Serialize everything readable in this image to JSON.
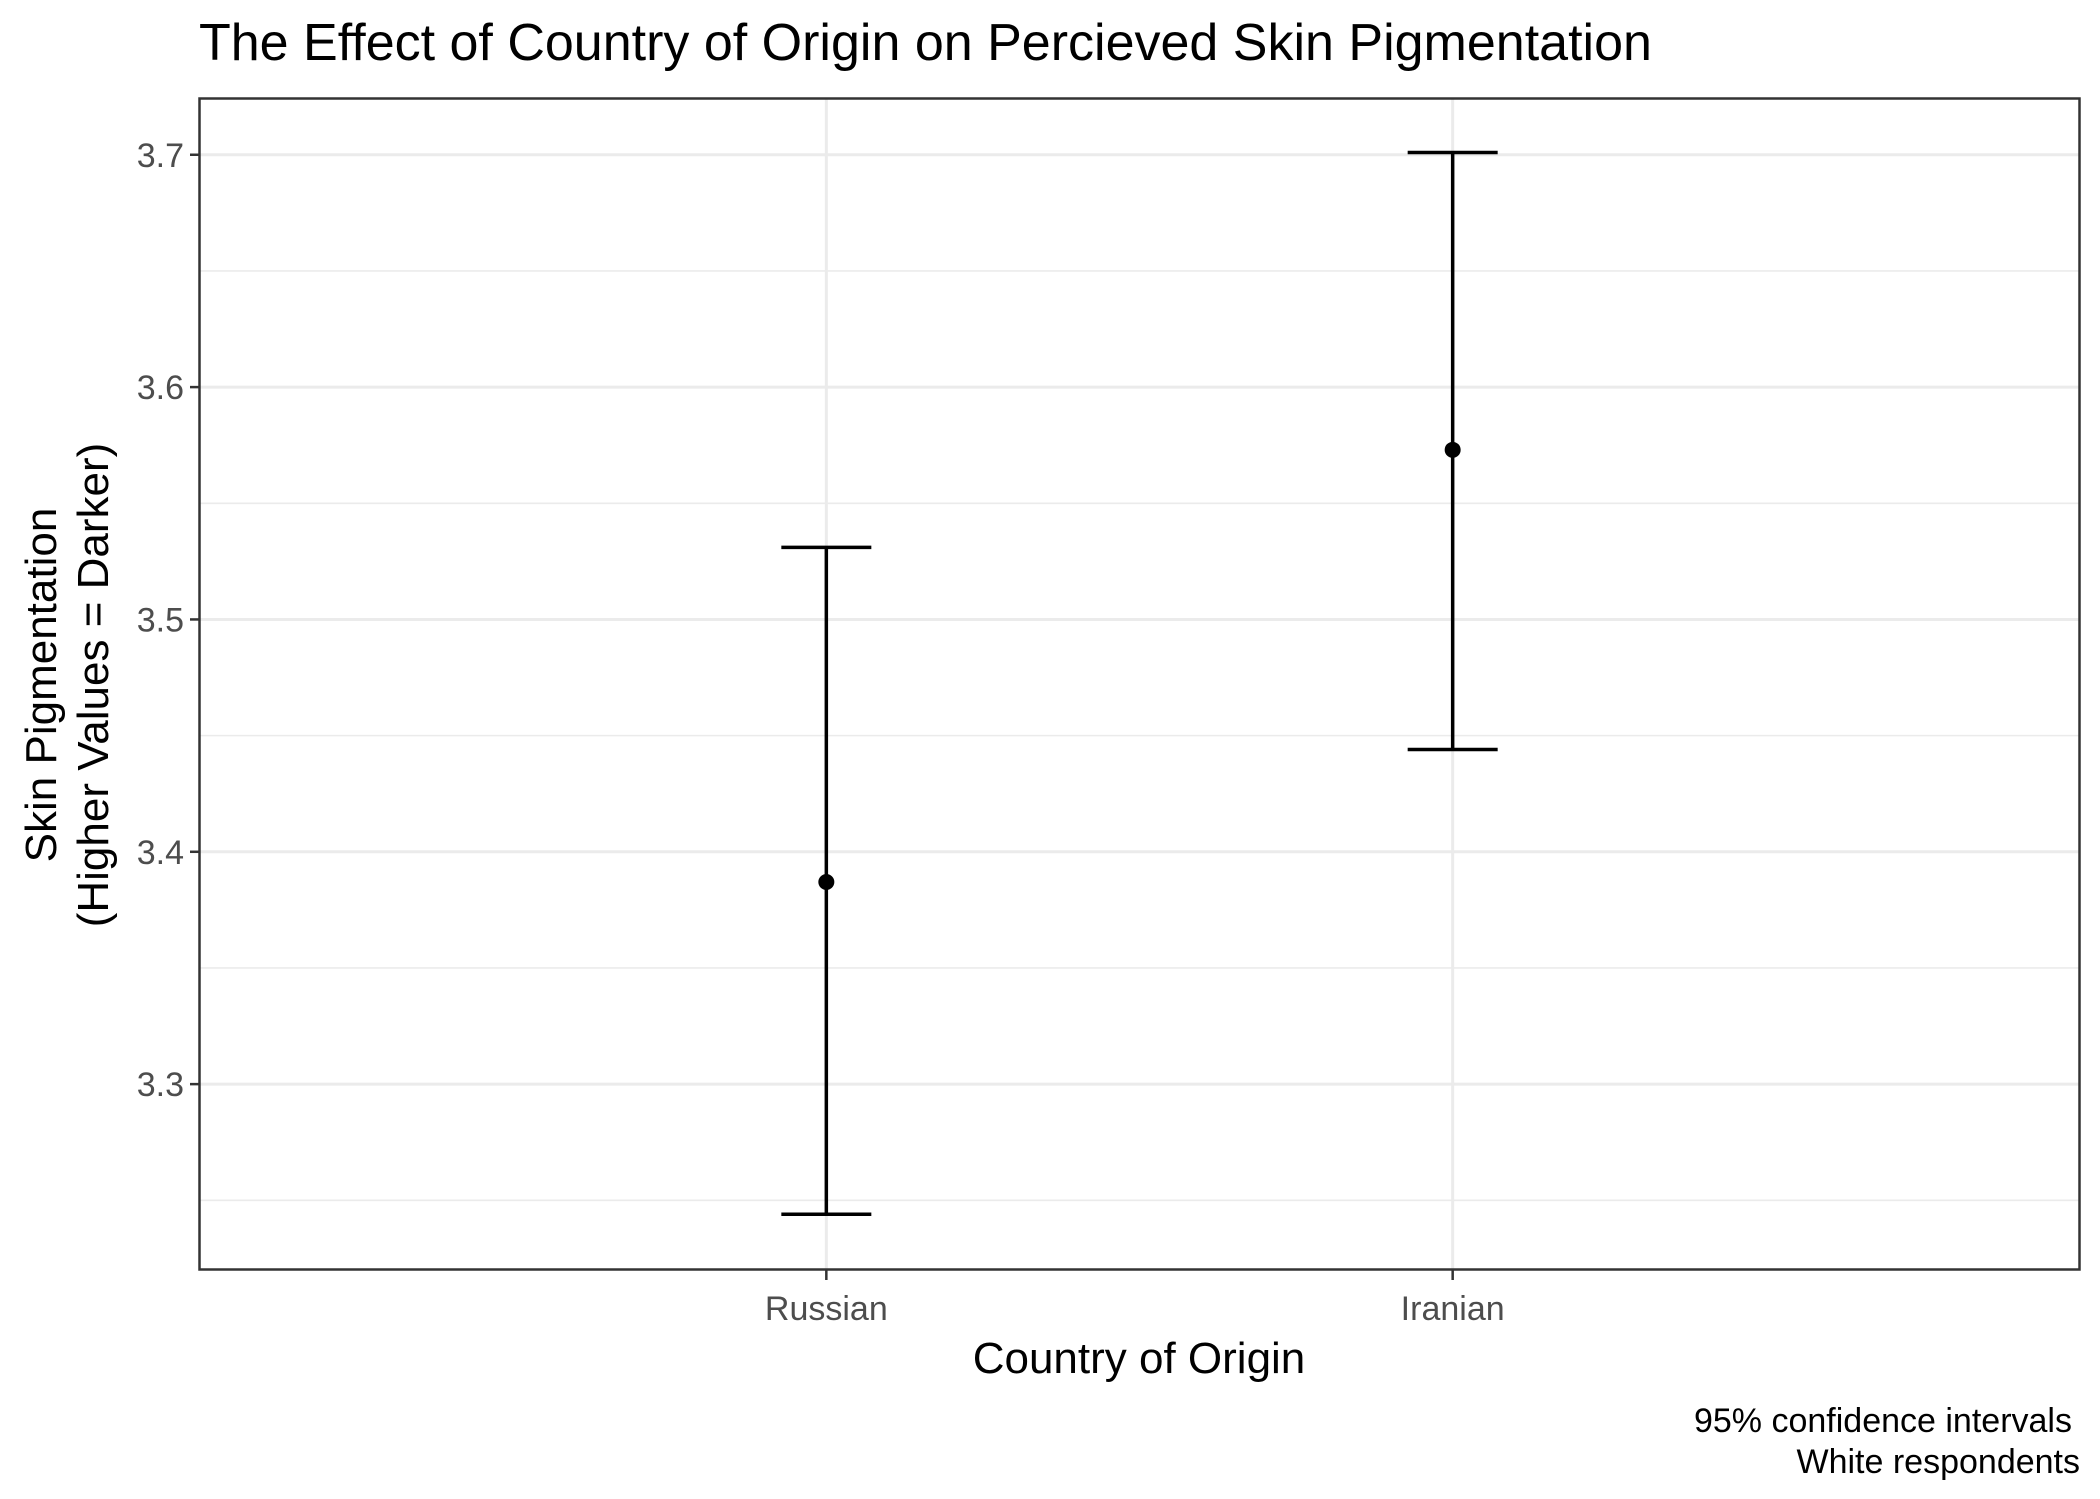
{
  "chart_data": {
    "type": "errorbar",
    "title": "The Effect of Country of Origin on Percieved Skin Pigmentation",
    "xlabel": "Country of Origin",
    "ylabel": [
      "Skin Pigmentation",
      "(Higher Values = Darker)"
    ],
    "caption": [
      "95% confidence intervals",
      "White respondents"
    ],
    "categories": [
      "Russian",
      "Iranian"
    ],
    "estimate": [
      3.387,
      3.573
    ],
    "lower": [
      3.244,
      3.444
    ],
    "upper": [
      3.531,
      3.701
    ],
    "ylim": [
      3.22,
      3.724
    ],
    "yticks": [
      3.3,
      3.4,
      3.5,
      3.6,
      3.7
    ],
    "ytick_labels": [
      "3.3",
      "3.4",
      "3.5",
      "3.6",
      "3.7"
    ],
    "grid": true,
    "colors": {
      "marks": "#000000",
      "grid": "#ebebeb",
      "border": "#333333"
    }
  }
}
